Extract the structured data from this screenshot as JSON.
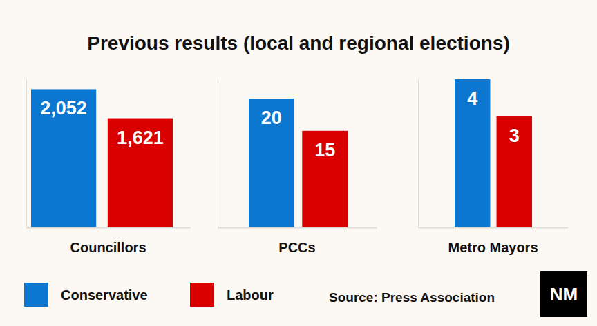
{
  "title": "Previous results (local and regional elections)",
  "source": "Source: Press Association",
  "logo": "NM",
  "chart_data": [
    {
      "type": "bar",
      "categories": [
        "Councillors"
      ],
      "series": [
        {
          "name": "Conservative",
          "color": "#0b77d0",
          "values": [
            2052
          ],
          "value_labels": [
            "2,052"
          ]
        },
        {
          "name": "Labour",
          "color": "#d90000",
          "values": [
            1621
          ],
          "value_labels": [
            "1,621"
          ]
        }
      ],
      "ylim": [
        0,
        2200
      ],
      "yticks": [],
      "data_labels": true,
      "tick_labels": "x",
      "legend": "bottom-left"
    },
    {
      "type": "bar",
      "categories": [
        "PCCs"
      ],
      "series": [
        {
          "color": "#0b77d0",
          "values": [
            20
          ]
        },
        {
          "color": "#d90000",
          "values": [
            15
          ]
        }
      ],
      "ylim": [
        0,
        23
      ],
      "yticks": [],
      "data_labels": true,
      "tick_labels": "x"
    },
    {
      "type": "bar",
      "categories": [
        "Metro Mayors"
      ],
      "series": [
        {
          "color": "#0b77d0",
          "values": [
            4
          ]
        },
        {
          "color": "#d90000",
          "values": [
            3
          ]
        }
      ],
      "ylim": [
        0,
        4
      ],
      "yticks": [],
      "data_labels": true,
      "tick_labels": "x"
    }
  ]
}
